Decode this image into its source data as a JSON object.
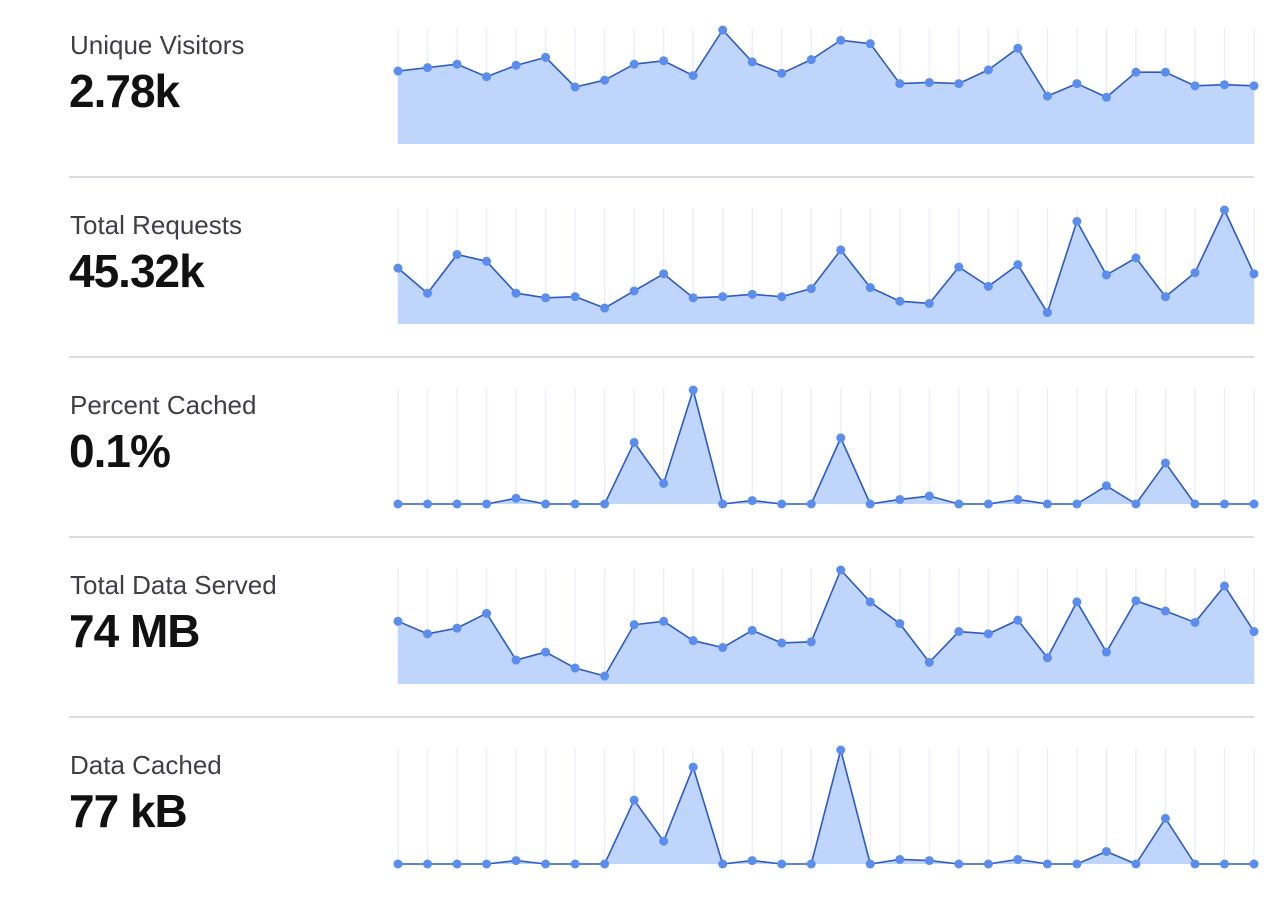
{
  "metrics": [
    {
      "label": "Unique Visitors",
      "value": "2.78k"
    },
    {
      "label": "Total Requests",
      "value": "45.32k"
    },
    {
      "label": "Percent Cached",
      "value": "0.1%"
    },
    {
      "label": "Total Data Served",
      "value": "74 MB"
    },
    {
      "label": "Data Cached",
      "value": "77 kB"
    }
  ],
  "colors": {
    "fill": "#bfd5fb",
    "line": "#2d5bc2",
    "dot": "#5b8def",
    "grid": "#e9ecfb",
    "divider": "#d9dce1"
  },
  "chart_data": [
    {
      "type": "area",
      "name": "Unique Visitors",
      "grid": true,
      "values": [
        64,
        67,
        70,
        59,
        69,
        76,
        50,
        56,
        70,
        73,
        60,
        100,
        72,
        62,
        74,
        91,
        88,
        53,
        54,
        53,
        65,
        84,
        42,
        53,
        41,
        63,
        63,
        51,
        52,
        51
      ]
    },
    {
      "type": "area",
      "name": "Total Requests",
      "grid": true,
      "values": [
        49,
        27,
        61,
        55,
        27,
        23,
        24,
        14,
        29,
        44,
        23,
        24,
        26,
        24,
        31,
        65,
        32,
        20,
        18,
        50,
        33,
        52,
        10,
        90,
        43,
        58,
        24,
        45,
        100,
        44
      ]
    },
    {
      "type": "area",
      "name": "Percent Cached",
      "grid": true,
      "values": [
        0,
        0,
        0,
        0,
        5,
        0,
        0,
        0,
        54,
        18,
        100,
        0,
        3,
        0,
        0,
        58,
        0,
        4,
        7,
        0,
        0,
        4,
        0,
        0,
        16,
        0,
        36,
        0,
        0,
        0
      ]
    },
    {
      "type": "area",
      "name": "Total Data Served",
      "grid": true,
      "values": [
        55,
        44,
        49,
        62,
        21,
        28,
        14,
        7,
        52,
        55,
        38,
        32,
        47,
        36,
        37,
        100,
        72,
        53,
        19,
        46,
        44,
        56,
        23,
        72,
        28,
        73,
        64,
        54,
        86,
        46
      ]
    },
    {
      "type": "area",
      "name": "Data Cached",
      "grid": true,
      "values": [
        0,
        0,
        0,
        0,
        3,
        0,
        0,
        0,
        56,
        20,
        85,
        0,
        3,
        0,
        0,
        100,
        0,
        4,
        3,
        0,
        0,
        4,
        0,
        0,
        11,
        0,
        40,
        0,
        0,
        0
      ]
    }
  ]
}
